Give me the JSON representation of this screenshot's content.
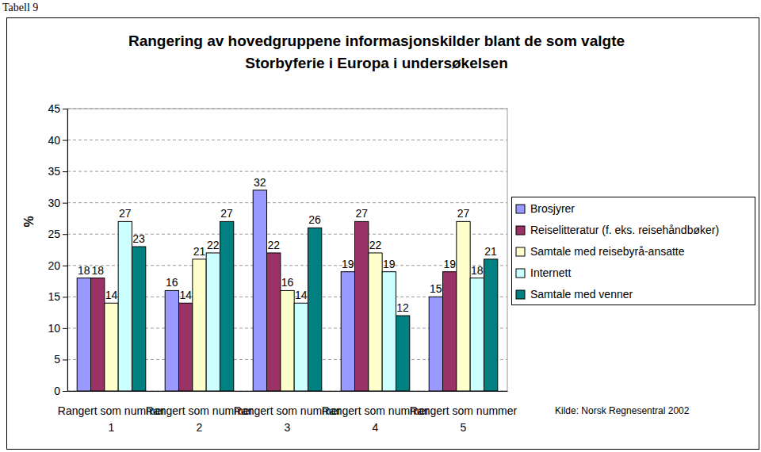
{
  "chart_data": {
    "type": "bar",
    "title": [
      "Rangering av hovedgruppene informasjonskilder blant de som valgte",
      "Storbyferie i Europa i undersøkelsen"
    ],
    "annotations": [
      "Tabell 9",
      "Kilde: Norsk Regnesentral 2002"
    ],
    "y_label": "%",
    "categories": [
      "Rangert som nummer 1",
      "Rangert som nummer 2",
      "Rangert som nummer 3",
      "Rangert som nummer 4",
      "Rangert som nummer 5"
    ],
    "series": [
      {
        "name": "Brosjyrer",
        "color": "#9999ff",
        "values": [
          18,
          16,
          32,
          19,
          15
        ]
      },
      {
        "name": "Reiselitteratur (f. eks. reisehåndbøker)",
        "color": "#993366",
        "values": [
          18,
          14,
          22,
          27,
          19
        ]
      },
      {
        "name": "Samtale med reisebyrå-ansatte",
        "color": "#ffffcc",
        "values": [
          14,
          21,
          16,
          22,
          27
        ]
      },
      {
        "name": "Internett",
        "color": "#ccffff",
        "values": [
          27,
          22,
          14,
          19,
          18
        ]
      },
      {
        "name": "Samtale med venner",
        "color": "#008080",
        "values": [
          23,
          27,
          26,
          12,
          21
        ]
      }
    ],
    "ylim": [
      0,
      45
    ],
    "yticks": [
      0,
      5,
      10,
      15,
      20,
      25,
      30,
      35,
      40,
      45
    ],
    "grid": true,
    "legend": "right",
    "data_labels": true
  }
}
